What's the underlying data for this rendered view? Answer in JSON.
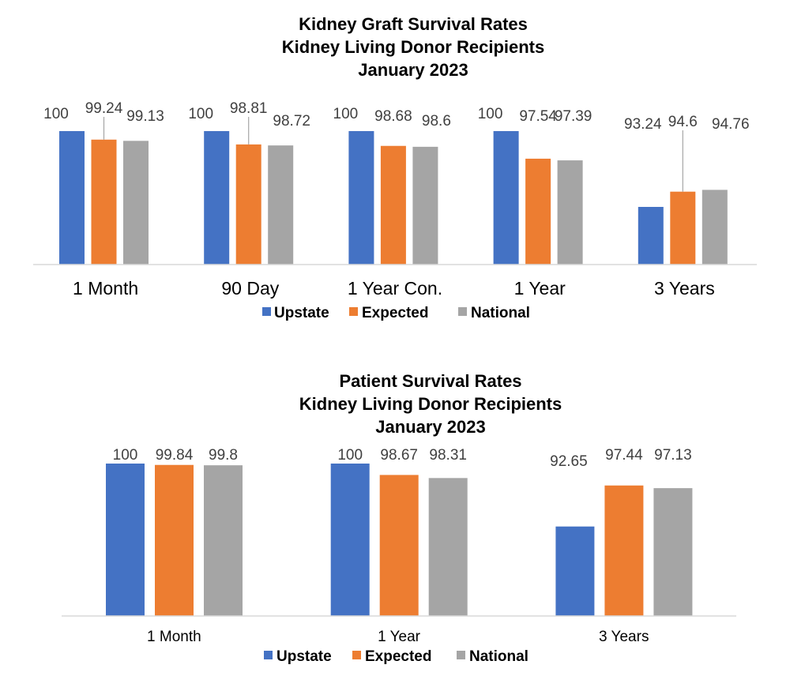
{
  "colors": {
    "upstate": "#4472C4",
    "expected": "#ED7D31",
    "national": "#A5A5A5",
    "axis": "#D9D9D9"
  },
  "chart_data": [
    {
      "type": "bar",
      "title": [
        "Kidney Graft Survival Rates",
        "Kidney Living Donor Recipients",
        "January 2023"
      ],
      "categories": [
        "1 Month",
        "90 Day",
        "1 Year Con.",
        "1 Year",
        "3 Years"
      ],
      "series": [
        {
          "name": "Upstate",
          "values": [
            100,
            100,
            100,
            100,
            93.24
          ]
        },
        {
          "name": "Expected",
          "values": [
            99.24,
            98.81,
            98.68,
            97.54,
            94.6
          ]
        },
        {
          "name": "National",
          "values": [
            99.13,
            98.72,
            98.6,
            97.39,
            94.76
          ]
        }
      ],
      "ylim": [
        0,
        100
      ],
      "legend": "bottom",
      "grid": false
    },
    {
      "type": "bar",
      "title": [
        "Patient Survival Rates",
        "Kidney Living Donor Recipients",
        "January 2023"
      ],
      "categories": [
        "1 Month",
        "1 Year",
        "3 Years"
      ],
      "series": [
        {
          "name": "Upstate",
          "values": [
            100,
            100,
            92.65
          ]
        },
        {
          "name": "Expected",
          "values": [
            99.84,
            98.67,
            97.44
          ]
        },
        {
          "name": "National",
          "values": [
            99.8,
            98.31,
            97.13
          ]
        }
      ],
      "ylim": [
        0,
        100
      ],
      "legend": "bottom",
      "grid": false
    }
  ]
}
